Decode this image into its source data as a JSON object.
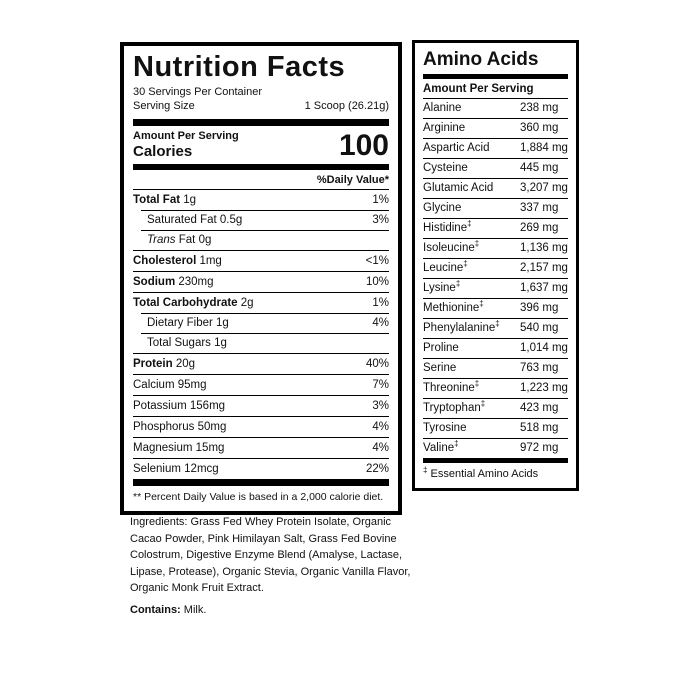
{
  "colors": {
    "ink": "#000000",
    "background": "#ffffff"
  },
  "nutrition_facts": {
    "title": "Nutrition Facts",
    "servings_per_container": "30 Servings Per Container",
    "serving_size_label": "Serving Size",
    "serving_size_value": "1 Scoop (26.21g)",
    "amount_per_serving_label": "Amount Per Serving",
    "calories_label": "Calories",
    "calories_value": "100",
    "daily_value_header": "%Daily Value*",
    "rows": [
      {
        "name": "Total Fat",
        "amount": "1g",
        "dv": "1%",
        "bold": true,
        "indent": false,
        "italic_prefix": ""
      },
      {
        "name": "Saturated Fat",
        "amount": "0.5g",
        "dv": "3%",
        "bold": false,
        "indent": true,
        "italic_prefix": ""
      },
      {
        "name": "Fat",
        "amount": "0g",
        "dv": "",
        "bold": false,
        "indent": true,
        "italic_prefix": "Trans"
      },
      {
        "name": "Cholesterol",
        "amount": "1mg",
        "dv": "<1%",
        "bold": true,
        "indent": false,
        "italic_prefix": ""
      },
      {
        "name": "Sodium",
        "amount": "230mg",
        "dv": "10%",
        "bold": true,
        "indent": false,
        "italic_prefix": ""
      },
      {
        "name": "Total Carbohydrate",
        "amount": "2g",
        "dv": "1%",
        "bold": true,
        "indent": false,
        "italic_prefix": ""
      },
      {
        "name": "Dietary Fiber",
        "amount": "1g",
        "dv": "4%",
        "bold": false,
        "indent": true,
        "italic_prefix": ""
      },
      {
        "name": "Total Sugars",
        "amount": "1g",
        "dv": "",
        "bold": false,
        "indent": true,
        "italic_prefix": ""
      },
      {
        "name": "Protein",
        "amount": "20g",
        "dv": "40%",
        "bold": true,
        "indent": false,
        "italic_prefix": ""
      },
      {
        "name": "Calcium",
        "amount": "95mg",
        "dv": "7%",
        "bold": false,
        "indent": false,
        "italic_prefix": ""
      },
      {
        "name": "Potassium",
        "amount": "156mg",
        "dv": "3%",
        "bold": false,
        "indent": false,
        "italic_prefix": ""
      },
      {
        "name": "Phosphorus",
        "amount": "50mg",
        "dv": "4%",
        "bold": false,
        "indent": false,
        "italic_prefix": ""
      },
      {
        "name": "Magnesium",
        "amount": "15mg",
        "dv": "4%",
        "bold": false,
        "indent": false,
        "italic_prefix": ""
      },
      {
        "name": "Selenium",
        "amount": "12mcg",
        "dv": "22%",
        "bold": false,
        "indent": false,
        "italic_prefix": ""
      }
    ],
    "footnote": "** Percent Daily Value is based in a 2,000 calorie diet."
  },
  "amino_acids": {
    "title": "Amino Acids",
    "column_header": "Amount Per Serving",
    "rows": [
      {
        "name": "Alanine",
        "essential": false,
        "amount": "238 mg"
      },
      {
        "name": "Arginine",
        "essential": false,
        "amount": "360 mg"
      },
      {
        "name": "Aspartic Acid",
        "essential": false,
        "amount": "1,884 mg"
      },
      {
        "name": "Cysteine",
        "essential": false,
        "amount": "445 mg"
      },
      {
        "name": "Glutamic Acid",
        "essential": false,
        "amount": "3,207 mg"
      },
      {
        "name": "Glycine",
        "essential": false,
        "amount": "337 mg"
      },
      {
        "name": "Histidine",
        "essential": true,
        "amount": "269 mg"
      },
      {
        "name": "Isoleucine",
        "essential": true,
        "amount": "1,136 mg"
      },
      {
        "name": "Leucine",
        "essential": true,
        "amount": "2,157 mg"
      },
      {
        "name": "Lysine",
        "essential": true,
        "amount": "1,637 mg"
      },
      {
        "name": "Methionine",
        "essential": true,
        "amount": "396 mg"
      },
      {
        "name": "Phenylalanine",
        "essential": true,
        "amount": "540 mg"
      },
      {
        "name": "Proline",
        "essential": false,
        "amount": "1,014 mg"
      },
      {
        "name": "Serine",
        "essential": false,
        "amount": "763 mg"
      },
      {
        "name": "Threonine",
        "essential": true,
        "amount": "1,223 mg"
      },
      {
        "name": "Tryptophan",
        "essential": true,
        "amount": "423 mg"
      },
      {
        "name": "Tyrosine",
        "essential": false,
        "amount": "518 mg"
      },
      {
        "name": "Valine",
        "essential": true,
        "amount": "972 mg"
      }
    ],
    "dagger_symbol": "‡",
    "footnote_text": "Essential Amino Acids"
  },
  "ingredients": {
    "text": "Ingredients: Grass Fed Whey Protein Isolate, Organic Cacao Powder, Pink Himilayan Salt, Grass Fed Bovine Colostrum, Digestive Enzyme Blend (Amalyse, Lactase, Lipase, Protease), Organic Stevia, Organic Vanilla Flavor, Organic Monk Fruit Extract.",
    "contains_label": "Contains:",
    "contains_text": "Milk."
  }
}
